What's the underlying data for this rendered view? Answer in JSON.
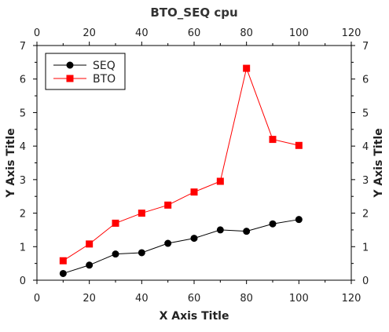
{
  "chart_data": {
    "type": "line",
    "title": "BTO_SEQ cpu",
    "xlabel": "X Axis Title",
    "ylabel": "Y Axis Title",
    "xlim": [
      0,
      120
    ],
    "ylim": [
      0,
      7
    ],
    "xticks": [
      "0",
      "20",
      "40",
      "60",
      "80",
      "100",
      "120"
    ],
    "yticks": [
      "0",
      "1",
      "2",
      "3",
      "4",
      "5",
      "6",
      "7"
    ],
    "grid": false,
    "legend_position": "top-left",
    "x": [
      10,
      20,
      30,
      40,
      50,
      60,
      70,
      80,
      90,
      100
    ],
    "series": [
      {
        "name": "SEQ",
        "color": "#000000",
        "marker": "circle",
        "values": [
          0.2,
          0.45,
          0.78,
          0.82,
          1.1,
          1.25,
          1.5,
          1.46,
          1.68,
          1.81
        ]
      },
      {
        "name": "BTO",
        "color": "#ff0000",
        "marker": "square",
        "values": [
          0.58,
          1.08,
          1.7,
          2.0,
          2.24,
          2.63,
          2.95,
          6.32,
          4.2,
          4.02
        ]
      }
    ]
  }
}
